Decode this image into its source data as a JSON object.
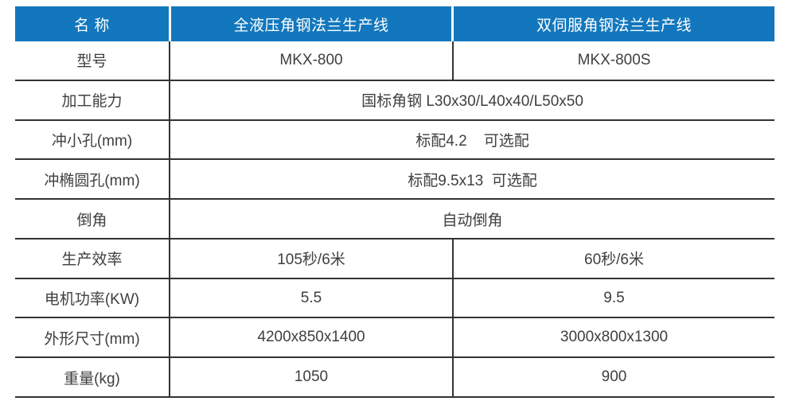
{
  "colors": {
    "header_bg": "#1377bd",
    "header_text": "#ffffff",
    "body_text": "#3f3f3f",
    "grid_line": "#333333",
    "page_bg": "#ffffff"
  },
  "table": {
    "header": {
      "col1": "名 称",
      "col2": "全液压角钢法兰生产线",
      "col3": "双伺服角钢法兰生产线"
    },
    "rows": [
      {
        "label": "型号",
        "type": "split",
        "value1": "MKX-800",
        "value2": "MKX-800S"
      },
      {
        "label": "加工能力",
        "type": "span",
        "value": "国标角钢 L30x30/L40x40/L50x50"
      },
      {
        "label": "冲小孔(mm)",
        "type": "span",
        "value": "标配4.2    可选配"
      },
      {
        "label": "冲椭圆孔(mm)",
        "type": "span",
        "value": "标配9.5x13  可选配"
      },
      {
        "label": "倒角",
        "type": "span",
        "value": "自动倒角"
      },
      {
        "label": "生产效率",
        "type": "split",
        "value1": "105秒/6米",
        "value2": "60秒/6米"
      },
      {
        "label": "电机功率(KW)",
        "type": "split",
        "value1": "5.5",
        "value2": "9.5"
      },
      {
        "label": "外形尺寸(mm)",
        "type": "split",
        "value1": "4200x850x1400",
        "value2": "3000x800x1300"
      },
      {
        "label": "重量(kg)",
        "type": "split",
        "value1": "1050",
        "value2": "900"
      }
    ]
  }
}
